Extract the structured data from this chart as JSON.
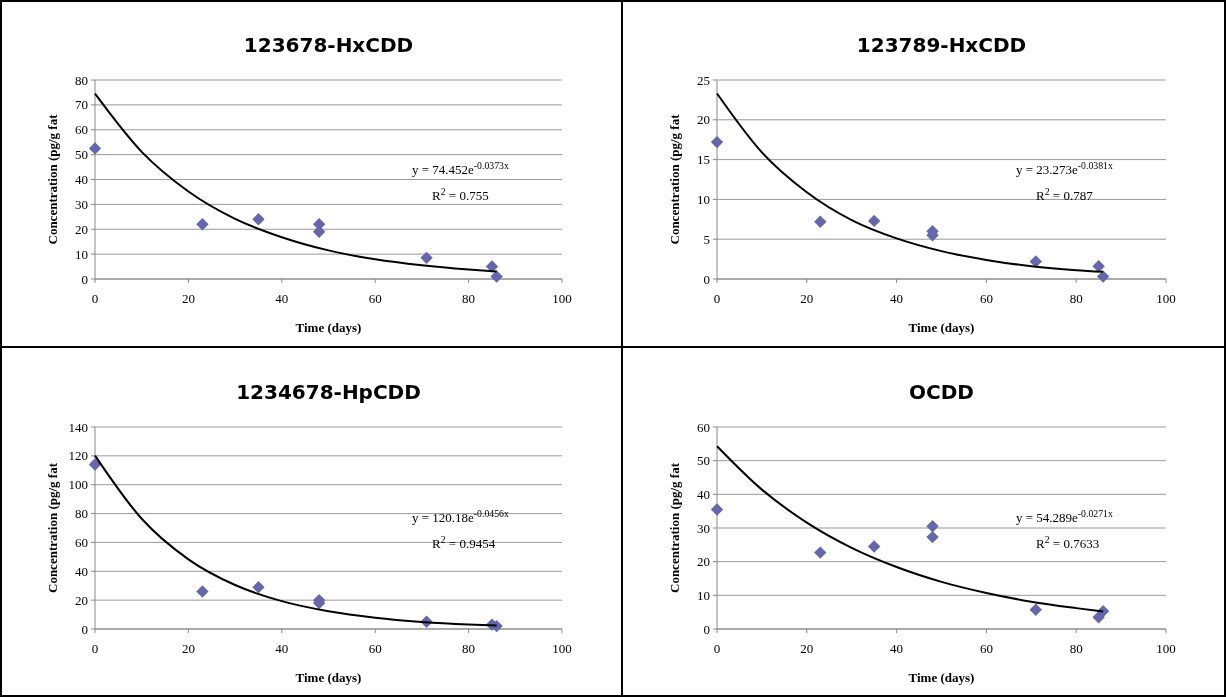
{
  "chart_data": [
    {
      "type": "scatter",
      "title": "123678-HxCDD",
      "xlabel": "Time (days)",
      "ylabel": "Concentration (pg/g fat",
      "xlim": [
        0,
        100
      ],
      "xticks": [
        0,
        20,
        40,
        60,
        80,
        100
      ],
      "ylim": [
        0,
        80
      ],
      "yticks": [
        0,
        10,
        20,
        30,
        40,
        50,
        60,
        70,
        80
      ],
      "grid": "y",
      "annotations": [
        "y = 74.452e$^{-0.0373x}$",
        "R$^{2}$ = 0.755"
      ],
      "series": [
        {
          "color": "#6666aa",
          "marker": "diamond",
          "x": [
            0,
            23,
            35,
            48,
            48,
            71,
            85,
            86
          ],
          "values": [
            52.5,
            22,
            24,
            22,
            19,
            8.5,
            5,
            1
          ]
        },
        {
          "type": "line",
          "marker": "none",
          "color": "#000000",
          "x": [
            0,
            10,
            20,
            30,
            40,
            50,
            60,
            70,
            80,
            86
          ],
          "values": [
            74.5,
            51.1,
            35.2,
            24.2,
            16.8,
            11.5,
            7.9,
            5.5,
            3.8,
            3.0
          ]
        }
      ]
    },
    {
      "type": "scatter",
      "title": "123789-HxCDD",
      "xlabel": "Time (days)",
      "ylabel": "Concentration (pg/g fat",
      "xlim": [
        0,
        100
      ],
      "xticks": [
        0,
        20,
        40,
        60,
        80,
        100
      ],
      "ylim": [
        0,
        25
      ],
      "yticks": [
        0,
        5,
        10,
        15,
        20,
        25
      ],
      "grid": "y",
      "annotations": [
        "y = 23.273e$^{-0.0381x}$",
        "R$^{2}$ = 0.787"
      ],
      "series": [
        {
          "color": "#6666aa",
          "marker": "diamond",
          "x": [
            0,
            23,
            35,
            48,
            48,
            71,
            85,
            86
          ],
          "values": [
            17.2,
            7.2,
            7.3,
            6.0,
            5.5,
            2.2,
            1.6,
            0.3
          ]
        },
        {
          "type": "line",
          "marker": "none",
          "color": "#000000",
          "x": [
            0,
            10,
            20,
            30,
            40,
            50,
            60,
            70,
            80,
            86
          ],
          "values": [
            23.3,
            15.9,
            10.9,
            7.4,
            5.1,
            3.5,
            2.4,
            1.6,
            1.1,
            0.9
          ]
        }
      ]
    },
    {
      "type": "scatter",
      "title": "1234678-HpCDD",
      "xlabel": "Time (days)",
      "ylabel": "Concentration (pg/g fat",
      "xlim": [
        0,
        100
      ],
      "xticks": [
        0,
        20,
        40,
        60,
        80,
        100
      ],
      "ylim": [
        0,
        140
      ],
      "yticks": [
        0,
        20,
        40,
        60,
        80,
        100,
        120,
        140
      ],
      "grid": "y",
      "annotations": [
        "y = 120.18e$^{-0.0456x}$",
        "R$^{2}$ = 0.9454"
      ],
      "series": [
        {
          "color": "#6666aa",
          "marker": "diamond",
          "x": [
            0,
            23,
            35,
            48,
            48,
            71,
            85,
            86
          ],
          "values": [
            114,
            26,
            29,
            20,
            18,
            5,
            3,
            2
          ]
        },
        {
          "type": "line",
          "marker": "none",
          "color": "#000000",
          "x": [
            0,
            10,
            20,
            30,
            40,
            50,
            60,
            70,
            80,
            86
          ],
          "values": [
            120.2,
            76.4,
            48.3,
            30.5,
            19.3,
            12.3,
            7.8,
            4.9,
            3.1,
            2.4
          ]
        }
      ]
    },
    {
      "type": "scatter",
      "title": "OCDD",
      "xlabel": "Time (days)",
      "ylabel": "Concentration (pg/g fat",
      "xlim": [
        0,
        100
      ],
      "xticks": [
        0,
        20,
        40,
        60,
        80,
        100
      ],
      "ylim": [
        0,
        60
      ],
      "yticks": [
        0,
        10,
        20,
        30,
        40,
        50,
        60
      ],
      "grid": "y",
      "annotations": [
        "y = 54.289e$^{-0.0271x}$",
        "R$^{2}$ = 0.7633"
      ],
      "series": [
        {
          "color": "#6666aa",
          "marker": "diamond",
          "x": [
            0,
            23,
            35,
            48,
            48,
            71,
            85,
            86
          ],
          "values": [
            35.5,
            22.7,
            24.5,
            30.5,
            27.3,
            5.7,
            3.5,
            5.3
          ]
        },
        {
          "type": "line",
          "marker": "none",
          "color": "#000000",
          "x": [
            0,
            10,
            20,
            30,
            40,
            50,
            60,
            70,
            80,
            86
          ],
          "values": [
            54.3,
            41.4,
            31.6,
            24.1,
            18.4,
            14.0,
            10.7,
            8.1,
            6.2,
            5.2
          ]
        }
      ]
    }
  ]
}
